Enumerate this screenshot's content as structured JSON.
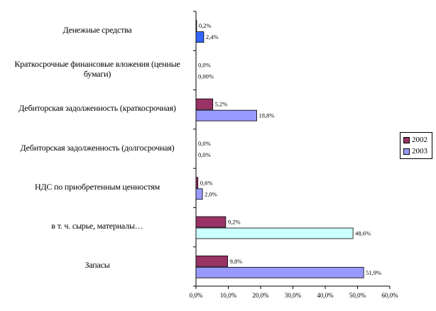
{
  "chart_data": {
    "type": "bar",
    "orientation": "horizontal",
    "categories": [
      "Денежные средства",
      "Краткосрочные финансовые вложения (ценные бумаги)",
      "Дебиторская задолженность (краткосрочная)",
      "Дебиторская задолженность (долгосрочная)",
      "НДС по приобретенным ценностям",
      "в т. ч. сырье, материалы…",
      "Запасы"
    ],
    "category_display": [
      [
        "Денежные средства"
      ],
      [
        "Краткосрочные финансовые вложения (ценные",
        "бумаги)"
      ],
      [
        "Дебиторская задолженность (краткосрочная)"
      ],
      [
        "Дебиторская задолженность (долгосрочная)"
      ],
      [
        "НДС по приобретенным ценностям"
      ],
      [
        "в т. ч. сырье, материалы…"
      ],
      [
        "Запасы"
      ]
    ],
    "series": [
      {
        "name": "2002",
        "color": "#993366",
        "values": [
          0.2,
          0.0,
          5.2,
          0.0,
          0.6,
          9.2,
          9.8
        ],
        "labels": [
          "0,2%",
          "0,0%",
          "5,2%",
          "0,0%",
          "0,6%",
          "9,2%",
          "9,8%"
        ]
      },
      {
        "name": "2003",
        "color": "#9999ff",
        "values": [
          2.4,
          0.0,
          18.8,
          0.0,
          2.0,
          48.6,
          51.9
        ],
        "labels": [
          "2,4%",
          "0,00%",
          "18,8%",
          "0,0%",
          "2,0%",
          "48,6%",
          "51,9%"
        ]
      }
    ],
    "bar_colors_2003": [
      "#3366ff",
      "#9999ff",
      "#9999ff",
      "#9999ff",
      "#9999ff",
      "#ccffff",
      "#9999ff"
    ],
    "x_ticks": [
      0,
      10,
      20,
      30,
      40,
      50,
      60
    ],
    "x_tick_labels": [
      "0,0%",
      "10,0%",
      "20,0%",
      "30,0%",
      "40,0%",
      "50,0%",
      "60,0%"
    ],
    "xlim": [
      0,
      60
    ],
    "title": "",
    "xlabel": "",
    "ylabel": "",
    "grid": false,
    "legend_position": "right"
  }
}
